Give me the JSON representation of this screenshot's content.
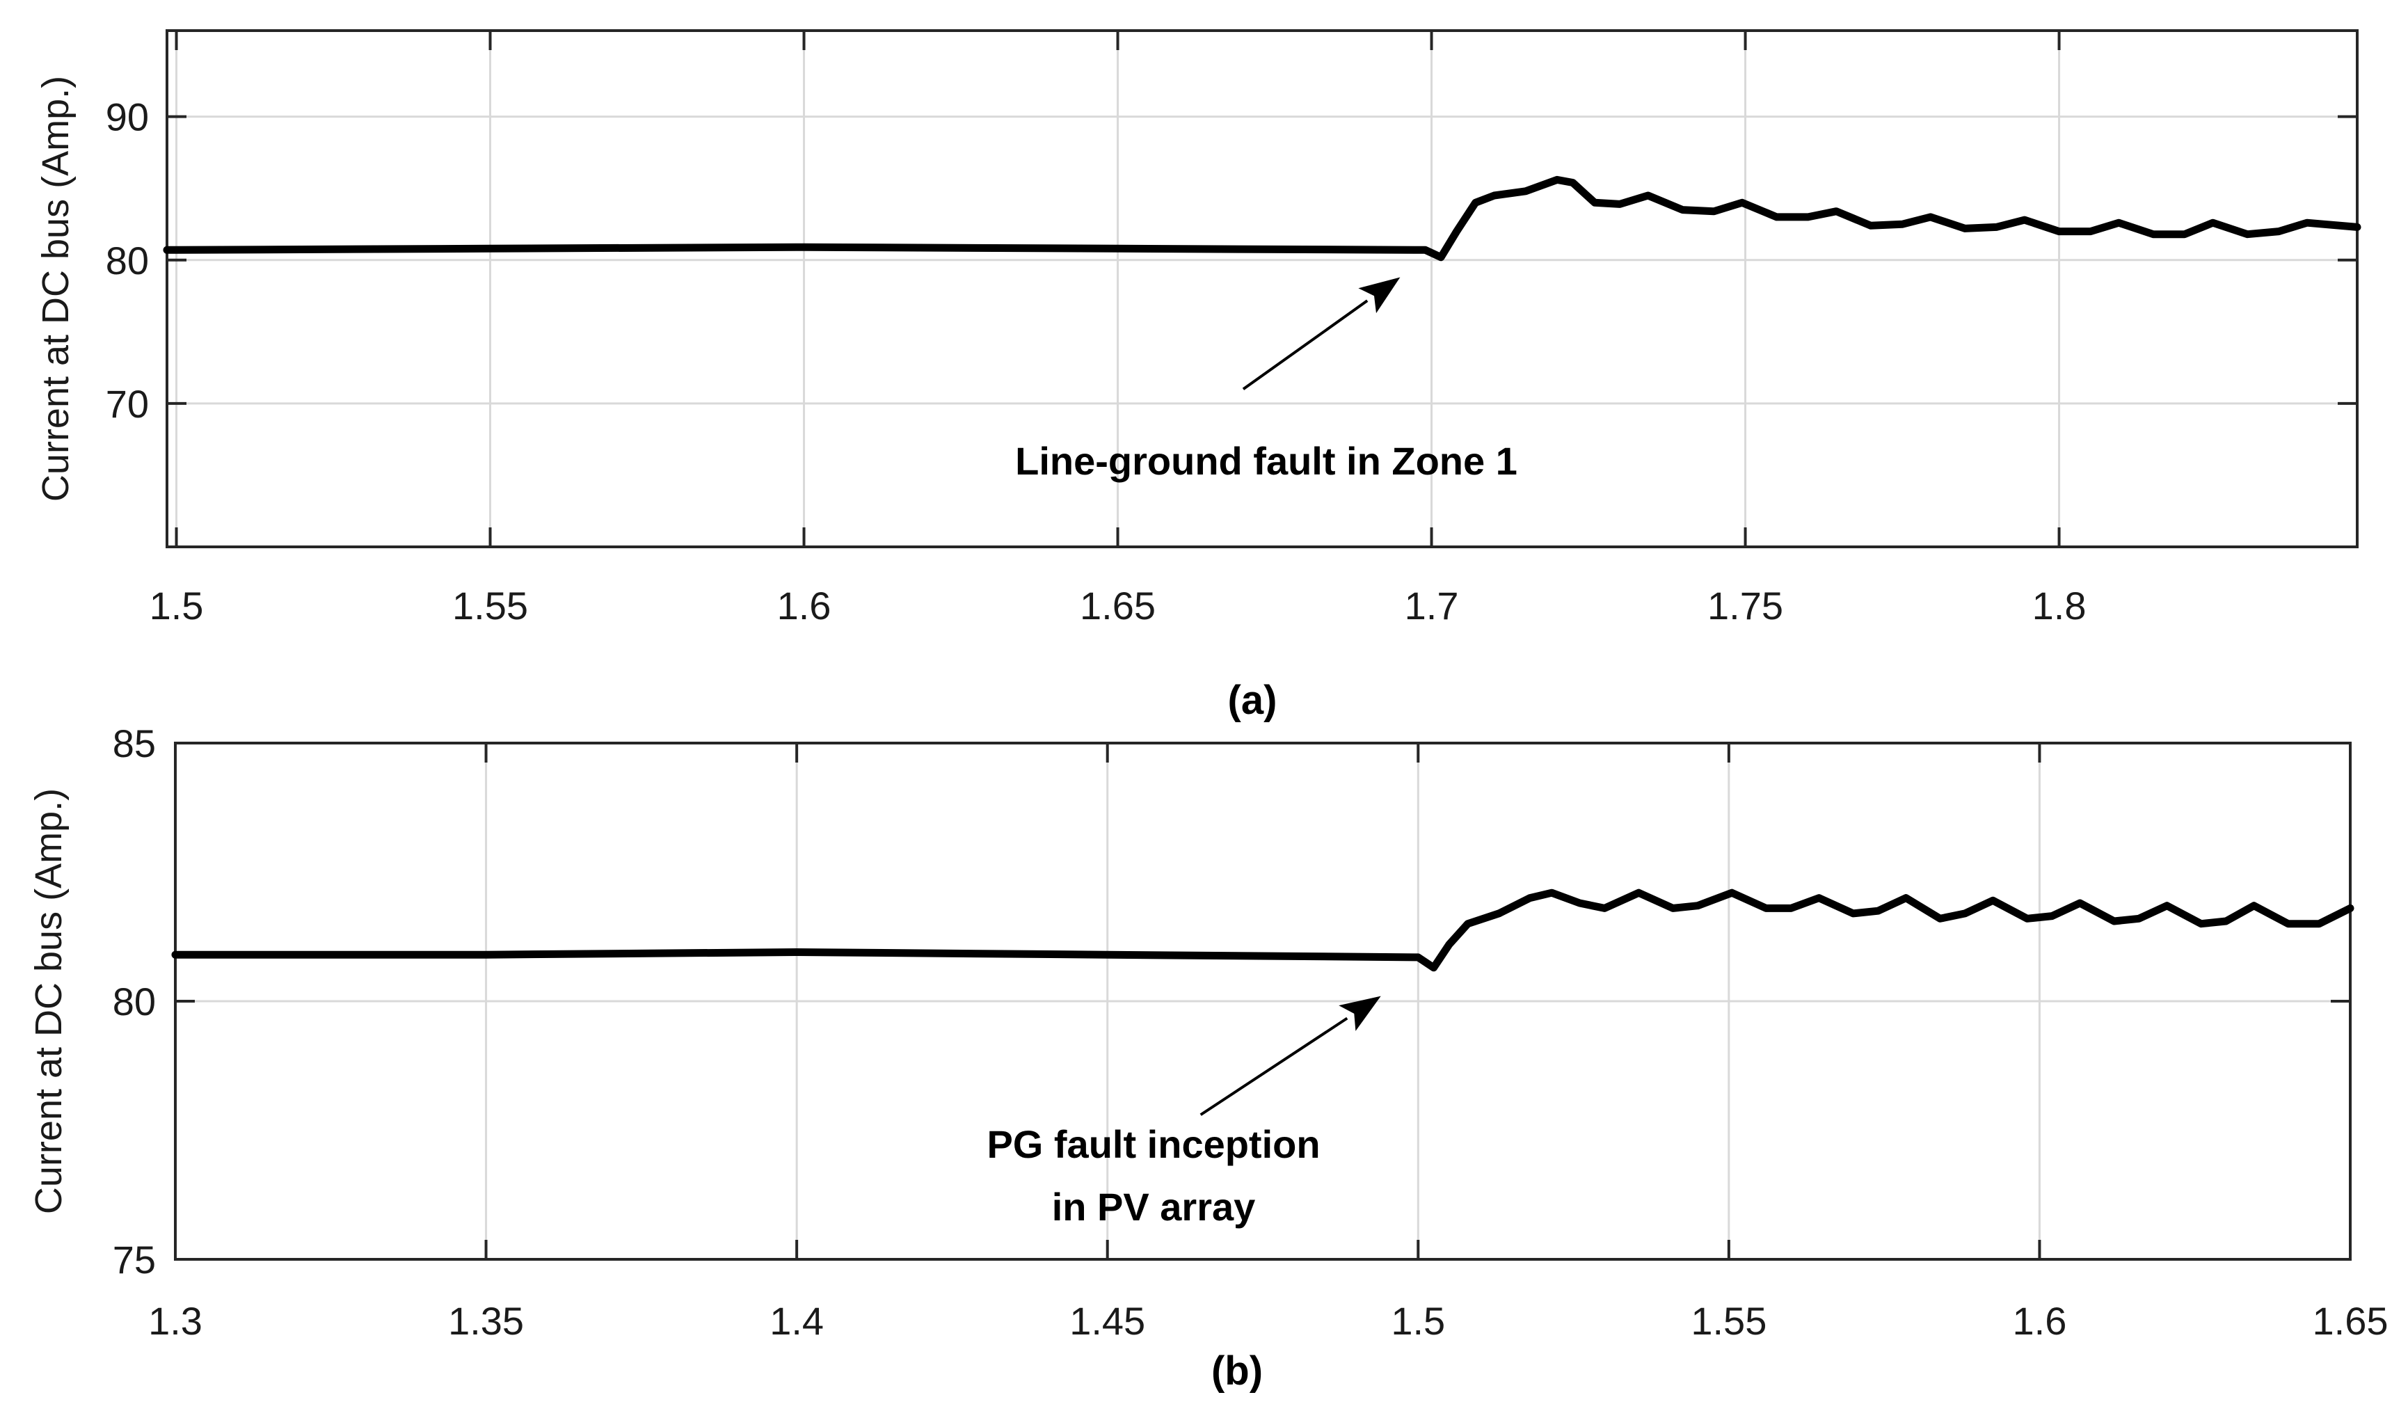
{
  "chart_data": [
    {
      "type": "line",
      "panel": "a",
      "caption": "(a)",
      "ylabel": "Current at DC bus (Amp.)",
      "xlim": [
        1.4985,
        1.8475
      ],
      "ylim": [
        60,
        96
      ],
      "xticks": [
        1.5,
        1.55,
        1.6,
        1.65,
        1.7,
        1.75,
        1.8
      ],
      "xtick_labels": [
        "1.5",
        "1.55",
        "1.6",
        "1.65",
        "1.7",
        "1.75",
        "1.8"
      ],
      "yticks": [
        70,
        80,
        90
      ],
      "ytick_labels": [
        "70",
        "80",
        "90"
      ],
      "grid": true,
      "annotation": {
        "text": "Line-ground fault in Zone 1",
        "arrow_to_data": [
          1.695,
          78.8
        ],
        "arrow_from_data": [
          1.67,
          71.0
        ]
      },
      "series": [
        {
          "name": "Current at DC bus",
          "x": [
            1.4985,
            1.55,
            1.6,
            1.65,
            1.699,
            1.7015,
            1.704,
            1.707,
            1.71,
            1.715,
            1.72,
            1.7225,
            1.726,
            1.73,
            1.7345,
            1.74,
            1.745,
            1.7495,
            1.755,
            1.76,
            1.7645,
            1.77,
            1.775,
            1.7795,
            1.785,
            1.79,
            1.7945,
            1.8,
            1.805,
            1.8095,
            1.815,
            1.82,
            1.8245,
            1.83,
            1.835,
            1.8395,
            1.8475
          ],
          "y": [
            80.7,
            80.8,
            80.9,
            80.8,
            80.7,
            80.2,
            82.0,
            84.0,
            84.5,
            84.8,
            85.6,
            85.4,
            84.0,
            83.9,
            84.5,
            83.5,
            83.4,
            84.0,
            83.0,
            83.0,
            83.4,
            82.4,
            82.5,
            83.0,
            82.2,
            82.3,
            82.8,
            82.0,
            82.0,
            82.6,
            81.8,
            81.8,
            82.6,
            81.8,
            82.0,
            82.6,
            82.3
          ]
        }
      ]
    },
    {
      "type": "line",
      "panel": "b",
      "caption": "(b)",
      "ylabel": "Current at DC bus (Amp.)",
      "xlim": [
        1.3,
        1.65
      ],
      "ylim": [
        75,
        85
      ],
      "xticks": [
        1.3,
        1.35,
        1.4,
        1.45,
        1.5,
        1.55,
        1.6,
        1.65
      ],
      "xtick_labels": [
        "1.3",
        "1.35",
        "1.4",
        "1.45",
        "1.5",
        "1.55",
        "1.6",
        "1.65"
      ],
      "yticks": [
        75,
        80,
        85
      ],
      "ytick_labels": [
        "75",
        "80",
        "85"
      ],
      "grid": true,
      "annotation": {
        "lines": [
          "PG fault inception",
          "in PV array"
        ],
        "arrow_to_data": [
          1.494,
          80.1
        ],
        "arrow_from_data": [
          1.465,
          77.8
        ]
      },
      "series": [
        {
          "name": "Current at DC bus",
          "x": [
            1.3,
            1.35,
            1.4,
            1.45,
            1.5,
            1.5025,
            1.505,
            1.508,
            1.513,
            1.518,
            1.5215,
            1.526,
            1.53,
            1.5355,
            1.541,
            1.545,
            1.5505,
            1.556,
            1.56,
            1.5645,
            1.57,
            1.574,
            1.5785,
            1.584,
            1.588,
            1.5925,
            1.598,
            1.602,
            1.6065,
            1.612,
            1.616,
            1.6205,
            1.626,
            1.63,
            1.6345,
            1.64,
            1.645,
            1.65
          ],
          "y": [
            80.9,
            80.9,
            80.95,
            80.9,
            80.85,
            80.65,
            81.1,
            81.5,
            81.7,
            82.0,
            82.1,
            81.9,
            81.8,
            82.1,
            81.8,
            81.85,
            82.1,
            81.8,
            81.8,
            82.0,
            81.7,
            81.75,
            82.0,
            81.6,
            81.7,
            81.95,
            81.6,
            81.65,
            81.9,
            81.55,
            81.6,
            81.85,
            81.5,
            81.55,
            81.85,
            81.5,
            81.5,
            81.8
          ]
        }
      ]
    }
  ]
}
